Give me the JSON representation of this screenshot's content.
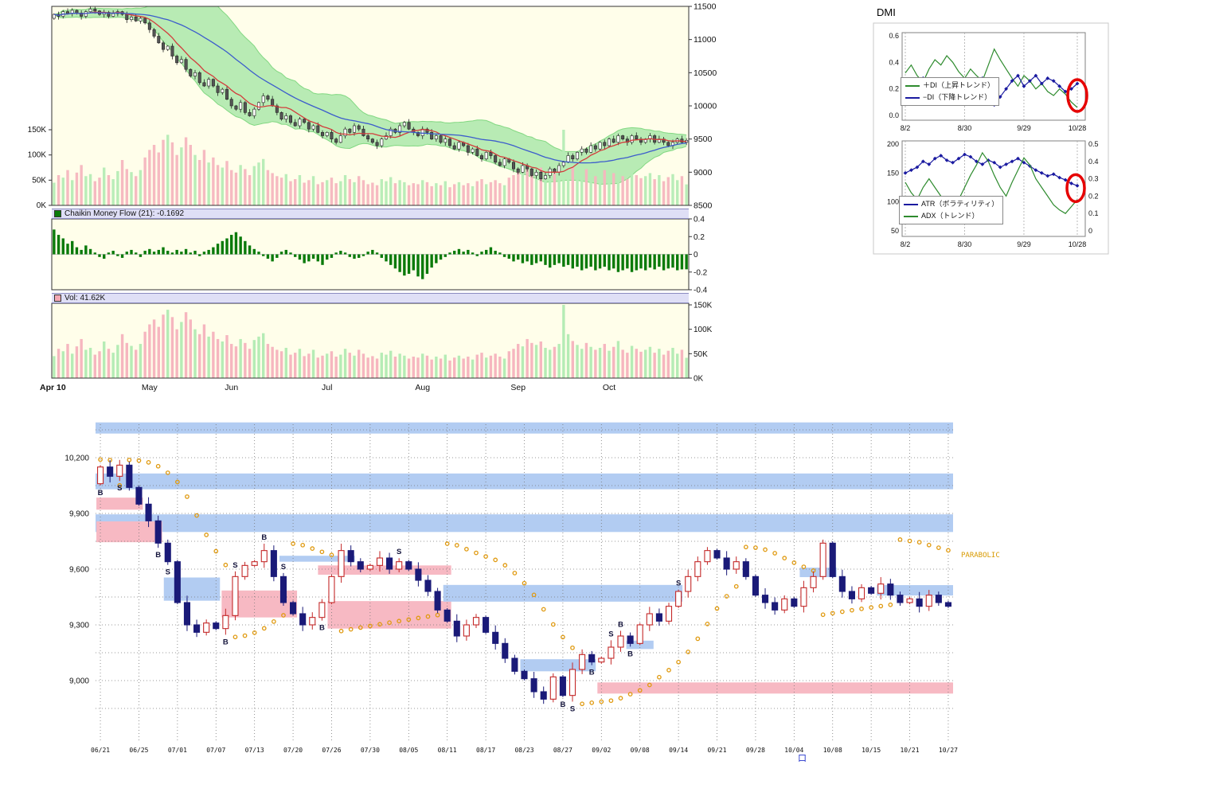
{
  "chart_data": [
    {
      "id": "price",
      "type": "candlestick",
      "title": "",
      "x_labels": [
        "Apr 10",
        "May",
        "Jun",
        "Jul",
        "Aug",
        "Sep",
        "Oct"
      ],
      "x_label_indices": [
        0,
        21,
        39,
        60,
        81,
        102,
        122
      ],
      "right_axis_labels": [
        "11500",
        "11000",
        "10500",
        "10000",
        "9500",
        "9000",
        "8500"
      ],
      "right_axis_values": [
        11500,
        11000,
        10500,
        10000,
        9500,
        9000,
        8500
      ],
      "left_axis_labels": [
        "150K",
        "100K",
        "50K",
        "0K"
      ],
      "left_axis_values": [
        150,
        100,
        50,
        0
      ],
      "y_min": 8500,
      "y_max": 11500,
      "overlays": [
        "bollinger-band",
        "fast-ma",
        "slow-ma",
        "volume"
      ],
      "closes": [
        11380,
        11350,
        11420,
        11390,
        11440,
        11400,
        11350,
        11420,
        11460,
        11430,
        11380,
        11410,
        11350,
        11390,
        11420,
        11380,
        11300,
        11340,
        11280,
        11320,
        11250,
        11150,
        11050,
        10950,
        10850,
        10900,
        10750,
        10650,
        10700,
        10550,
        10450,
        10500,
        10350,
        10300,
        10400,
        10300,
        10200,
        10250,
        10100,
        10000,
        9950,
        10050,
        9900,
        9850,
        9950,
        10050,
        10150,
        10100,
        10000,
        9900,
        9800,
        9850,
        9750,
        9700,
        9800,
        9750,
        9650,
        9700,
        9600,
        9550,
        9600,
        9500,
        9450,
        9550,
        9650,
        9600,
        9700,
        9650,
        9550,
        9500,
        9450,
        9400,
        9500,
        9550,
        9650,
        9600,
        9700,
        9750,
        9650,
        9600,
        9550,
        9650,
        9600,
        9500,
        9550,
        9450,
        9500,
        9400,
        9350,
        9450,
        9400,
        9300,
        9350,
        9250,
        9200,
        9300,
        9250,
        9150,
        9100,
        9200,
        9150,
        9050,
        9000,
        9100,
        9050,
        8950,
        9000,
        8900,
        8950,
        9050,
        9000,
        9100,
        9150,
        9250,
        9200,
        9300,
        9350,
        9300,
        9400,
        9350,
        9450,
        9400,
        9500,
        9450,
        9550,
        9500,
        9450,
        9550,
        9500,
        9450,
        9500,
        9550,
        9450,
        9500,
        9450,
        9400,
        9450,
        9500,
        9450,
        9480
      ],
      "volumes": [
        45,
        60,
        55,
        70,
        50,
        65,
        80,
        58,
        62,
        48,
        55,
        75,
        60,
        52,
        68,
        90,
        72,
        66,
        58,
        70,
        95,
        110,
        120,
        105,
        130,
        140,
        125,
        100,
        115,
        135,
        120,
        100,
        90,
        110,
        85,
        95,
        80,
        75,
        88,
        70,
        65,
        80,
        72,
        60,
        78,
        85,
        92,
        70,
        64,
        58,
        55,
        62,
        48,
        52,
        60,
        45,
        50,
        58,
        42,
        46,
        50,
        55,
        44,
        48,
        60,
        52,
        46,
        58,
        50,
        42,
        45,
        40,
        52,
        48,
        56,
        44,
        50,
        46,
        40,
        44,
        42,
        50,
        46,
        38,
        44,
        40,
        48,
        36,
        42,
        46,
        40,
        44,
        38,
        48,
        52,
        42,
        46,
        50,
        44,
        40,
        55,
        60,
        70,
        65,
        80,
        72,
        68,
        75,
        62,
        58,
        64,
        70,
        150,
        90,
        76,
        68,
        60,
        72,
        64,
        58,
        62,
        70,
        56,
        64,
        76,
        58,
        52,
        66,
        60,
        54,
        58,
        64,
        52,
        60,
        48,
        56,
        62,
        50,
        58,
        41.62
      ],
      "colors": {
        "band": "#a6e6a6",
        "band_edge": "#82d882",
        "ma_fast": "#d33c3c",
        "ma_slow": "#3c5ccc",
        "vol_up": "#b5ecb5",
        "vol_down": "#f6b6bf",
        "candle_up": "#ffffff",
        "candle_down": "#555555",
        "bg": "#fffeea"
      }
    },
    {
      "id": "cmf",
      "type": "bar",
      "label": "Chaikin Money Flow (21): -0.1692",
      "axis_labels": [
        "0.4",
        "0.2",
        "0",
        "-0.2",
        "-0.4"
      ],
      "axis_values": [
        0.4,
        0.2,
        0,
        -0.2,
        -0.4
      ],
      "ylim": [
        -0.4,
        0.4
      ],
      "bar_color": "#0a7a0a",
      "values": [
        0.28,
        0.22,
        0.18,
        0.12,
        0.15,
        0.08,
        0.05,
        0.1,
        0.06,
        0.02,
        -0.03,
        -0.05,
        0.02,
        0.04,
        -0.02,
        -0.04,
        0.03,
        0.05,
        0.02,
        -0.03,
        0.04,
        0.06,
        0.03,
        0.05,
        0.08,
        0.04,
        0.02,
        0.05,
        0.03,
        0.06,
        0.02,
        0.04,
        -0.02,
        0.03,
        0.05,
        0.08,
        0.12,
        0.15,
        0.18,
        0.22,
        0.25,
        0.2,
        0.15,
        0.1,
        0.06,
        0.03,
        -0.02,
        -0.05,
        -0.08,
        -0.04,
        0.03,
        0.05,
        0.02,
        -0.03,
        -0.06,
        -0.1,
        -0.08,
        -0.05,
        -0.08,
        -0.12,
        -0.06,
        -0.04,
        0.02,
        0.04,
        0.02,
        -0.03,
        -0.05,
        -0.04,
        -0.02,
        0.03,
        0.05,
        0.02,
        -0.04,
        -0.08,
        -0.12,
        -0.16,
        -0.2,
        -0.24,
        -0.22,
        -0.18,
        -0.25,
        -0.28,
        -0.22,
        -0.15,
        -0.1,
        -0.06,
        -0.03,
        0.02,
        0.04,
        0.06,
        0.03,
        0.05,
        0.02,
        -0.02,
        0.03,
        0.05,
        0.08,
        0.04,
        0.02,
        -0.03,
        -0.05,
        -0.08,
        -0.06,
        -0.1,
        -0.08,
        -0.12,
        -0.1,
        -0.08,
        -0.12,
        -0.15,
        -0.12,
        -0.1,
        -0.14,
        -0.12,
        -0.16,
        -0.14,
        -0.18,
        -0.16,
        -0.14,
        -0.18,
        -0.16,
        -0.14,
        -0.18,
        -0.16,
        -0.2,
        -0.18,
        -0.16,
        -0.2,
        -0.18,
        -0.16,
        -0.18,
        -0.15,
        -0.17,
        -0.14,
        -0.18,
        -0.16,
        -0.15,
        -0.18,
        -0.17,
        -0.1692
      ]
    },
    {
      "id": "volume",
      "type": "bar",
      "label": "Vol: 41.62K",
      "bar_color": "#f4a8b4",
      "axis_labels": [
        "150K",
        "100K",
        "50K",
        "0K"
      ],
      "axis_values": [
        150,
        100,
        50,
        0
      ],
      "ylim": [
        0,
        150
      ]
    },
    {
      "id": "dmi_di",
      "type": "line",
      "title": "DMI",
      "x_labels": [
        "8/2",
        "8/30",
        "9/29",
        "10/28"
      ],
      "y_labels": [
        "0.6",
        "0.4",
        "0.2",
        "0.0"
      ],
      "y_values": [
        0.6,
        0.4,
        0.2,
        0.0
      ],
      "ylim": [
        0,
        0.6
      ],
      "series": [
        {
          "name": "＋DI（上昇トレンド）",
          "color": "#2e8b2e",
          "markers": false,
          "values": [
            0.32,
            0.38,
            0.3,
            0.25,
            0.35,
            0.42,
            0.38,
            0.45,
            0.4,
            0.33,
            0.28,
            0.35,
            0.3,
            0.26,
            0.38,
            0.5,
            0.42,
            0.35,
            0.28,
            0.22,
            0.3,
            0.26,
            0.2,
            0.24,
            0.18,
            0.15,
            0.2,
            0.16,
            0.1,
            0.06
          ]
        },
        {
          "name": "−DI（下降トレンド）",
          "color": "#1a1aa0",
          "markers": true,
          "values": [
            0.2,
            0.15,
            0.22,
            0.28,
            0.18,
            0.12,
            0.16,
            0.1,
            0.14,
            0.2,
            0.26,
            0.18,
            0.22,
            0.28,
            0.16,
            0.08,
            0.14,
            0.2,
            0.26,
            0.3,
            0.22,
            0.26,
            0.3,
            0.24,
            0.28,
            0.26,
            0.22,
            0.18,
            0.2,
            0.24
          ]
        }
      ],
      "annotation": {
        "type": "red-circle",
        "position": "latest-values",
        "color": "#e60000"
      }
    },
    {
      "id": "dmi_atr_adx",
      "type": "line",
      "x_labels": [
        "8/2",
        "8/30",
        "9/29",
        "10/28"
      ],
      "left_labels": [
        "200",
        "150",
        "100",
        "50"
      ],
      "left_values": [
        200,
        150,
        100,
        50
      ],
      "left_lim": [
        50,
        200
      ],
      "right_labels": [
        "0.5",
        "0.4",
        "0.3",
        "0.2",
        "0.1",
        "0"
      ],
      "right_values": [
        0.5,
        0.4,
        0.3,
        0.2,
        0.1,
        0
      ],
      "right_lim": [
        0,
        0.5
      ],
      "series": [
        {
          "name": "ATR（ボラティリティ）",
          "color": "#1a1aa0",
          "axis": "left",
          "markers": true,
          "values": [
            150,
            155,
            160,
            170,
            165,
            175,
            180,
            172,
            168,
            175,
            182,
            178,
            170,
            165,
            172,
            168,
            160,
            165,
            170,
            175,
            168,
            162,
            155,
            150,
            145,
            148,
            142,
            138,
            132,
            128
          ]
        },
        {
          "name": "ADX（トレンド）",
          "color": "#2e8b2e",
          "axis": "right",
          "markers": false,
          "values": [
            0.28,
            0.22,
            0.18,
            0.25,
            0.3,
            0.25,
            0.2,
            0.15,
            0.12,
            0.18,
            0.25,
            0.32,
            0.38,
            0.45,
            0.4,
            0.32,
            0.25,
            0.2,
            0.28,
            0.35,
            0.42,
            0.38,
            0.3,
            0.25,
            0.2,
            0.15,
            0.12,
            0.1,
            0.14,
            0.18
          ]
        }
      ],
      "annotation": {
        "type": "red-circle",
        "position": "latest-values",
        "color": "#e60000"
      }
    },
    {
      "id": "daily",
      "type": "candlestick",
      "parabolic_label": "PARABOLIC",
      "bottom_glyph": "口",
      "y_labels": [
        "10,200",
        "9,900",
        "9,600",
        "9,300",
        "9,000"
      ],
      "y_label_values": [
        10200,
        9900,
        9600,
        9300,
        9000
      ],
      "grid_min": 8850,
      "grid_max": 10350,
      "grid_step": 150,
      "x_labels": [
        "06/21",
        "06/25",
        "07/01",
        "07/07",
        "07/13",
        "07/20",
        "07/26",
        "07/30",
        "08/05",
        "08/11",
        "08/17",
        "08/23",
        "08/27",
        "09/02",
        "09/08",
        "09/14",
        "09/21",
        "09/28",
        "10/04",
        "10/08",
        "10/15",
        "10/21",
        "10/27"
      ],
      "x_label_indices": [
        0,
        4,
        8,
        12,
        16,
        20,
        24,
        28,
        32,
        36,
        40,
        44,
        48,
        52,
        56,
        60,
        64,
        68,
        72,
        76,
        80,
        84,
        88
      ],
      "closes": [
        10150,
        10100,
        10160,
        10040,
        9950,
        9860,
        9740,
        9640,
        9420,
        9300,
        9260,
        9310,
        9280,
        9350,
        9560,
        9620,
        9640,
        9700,
        9560,
        9420,
        9360,
        9300,
        9340,
        9420,
        9560,
        9700,
        9640,
        9600,
        9620,
        9660,
        9600,
        9640,
        9600,
        9540,
        9480,
        9380,
        9320,
        9240,
        9300,
        9340,
        9260,
        9200,
        9120,
        9050,
        9010,
        8940,
        8900,
        9020,
        8920,
        9060,
        9140,
        9100,
        9120,
        9180,
        9240,
        9200,
        9300,
        9360,
        9320,
        9400,
        9480,
        9560,
        9640,
        9700,
        9660,
        9600,
        9640,
        9560,
        9460,
        9420,
        9380,
        9440,
        9400,
        9500,
        9560,
        9740,
        9560,
        9480,
        9440,
        9500,
        9470,
        9520,
        9460,
        9420,
        9440,
        9400,
        9460,
        9420,
        9400
      ],
      "zones": [
        {
          "i1": 0,
          "i2": 88,
          "v1": 10330,
          "v2": 10390,
          "c": "blue",
          "full": true
        },
        {
          "i1": 0,
          "i2": 88,
          "v1": 10030,
          "v2": 10115,
          "c": "blue",
          "full": true
        },
        {
          "i1": 0,
          "i2": 88,
          "v1": 9800,
          "v2": 9895,
          "c": "blue",
          "full": true
        },
        {
          "i1": 52,
          "i2": 88,
          "v1": 8930,
          "v2": 8990,
          "c": "pink"
        },
        {
          "i1": 0,
          "i2": 4,
          "v1": 9920,
          "v2": 9985,
          "c": "pink"
        },
        {
          "i1": 0,
          "i2": 6,
          "v1": 9745,
          "v2": 9857,
          "c": "pink"
        },
        {
          "i1": 7,
          "i2": 12,
          "v1": 9430,
          "v2": 9555,
          "c": "blue"
        },
        {
          "i1": 13,
          "i2": 20,
          "v1": 9340,
          "v2": 9485,
          "c": "pink"
        },
        {
          "i1": 19,
          "i2": 26,
          "v1": 9640,
          "v2": 9672,
          "c": "blue"
        },
        {
          "i1": 23,
          "i2": 36,
          "v1": 9570,
          "v2": 9620,
          "c": "pink"
        },
        {
          "i1": 24,
          "i2": 36,
          "v1": 9280,
          "v2": 9428,
          "c": "pink"
        },
        {
          "i1": 36,
          "i2": 60,
          "v1": 9425,
          "v2": 9515,
          "c": "blue"
        },
        {
          "i1": 44,
          "i2": 51,
          "v1": 9050,
          "v2": 9115,
          "c": "blue"
        },
        {
          "i1": 55,
          "i2": 57,
          "v1": 9170,
          "v2": 9215,
          "c": "blue"
        },
        {
          "i1": 73,
          "i2": 76,
          "v1": 9557,
          "v2": 9608,
          "c": "blue"
        },
        {
          "i1": 81,
          "i2": 88,
          "v1": 9458,
          "v2": 9514,
          "c": "blue"
        }
      ],
      "markers": [
        {
          "i": 0,
          "t": "B",
          "p": "b"
        },
        {
          "i": 2,
          "t": "S",
          "p": "b"
        },
        {
          "i": 6,
          "t": "B",
          "p": "b"
        },
        {
          "i": 7,
          "t": "S",
          "p": "b"
        },
        {
          "i": 13,
          "t": "B",
          "p": "b"
        },
        {
          "i": 14,
          "t": "S",
          "p": "a"
        },
        {
          "i": 17,
          "t": "B",
          "p": "a"
        },
        {
          "i": 19,
          "t": "S",
          "p": "a"
        },
        {
          "i": 23,
          "t": "B",
          "p": "b"
        },
        {
          "i": 31,
          "t": "S",
          "p": "a"
        },
        {
          "i": 48,
          "t": "B",
          "p": "b"
        },
        {
          "i": 49,
          "t": "S",
          "p": "b"
        },
        {
          "i": 51,
          "t": "B",
          "p": "b"
        },
        {
          "i": 53,
          "t": "S",
          "p": "a"
        },
        {
          "i": 54,
          "t": "B",
          "p": "a"
        },
        {
          "i": 55,
          "t": "B",
          "p": "b"
        },
        {
          "i": 60,
          "t": "S",
          "p": "a"
        }
      ],
      "parabolic": {
        "af_step": 0.02,
        "af_max": 0.2
      },
      "colors": {
        "up": "#c42828",
        "down": "#1a1a78",
        "zone_blue": "#b2ccf2",
        "zone_pink": "#f7b9c3",
        "sar": "#e09a10",
        "parabolic": "#d89a00",
        "glyph": "#2233cc"
      }
    }
  ]
}
